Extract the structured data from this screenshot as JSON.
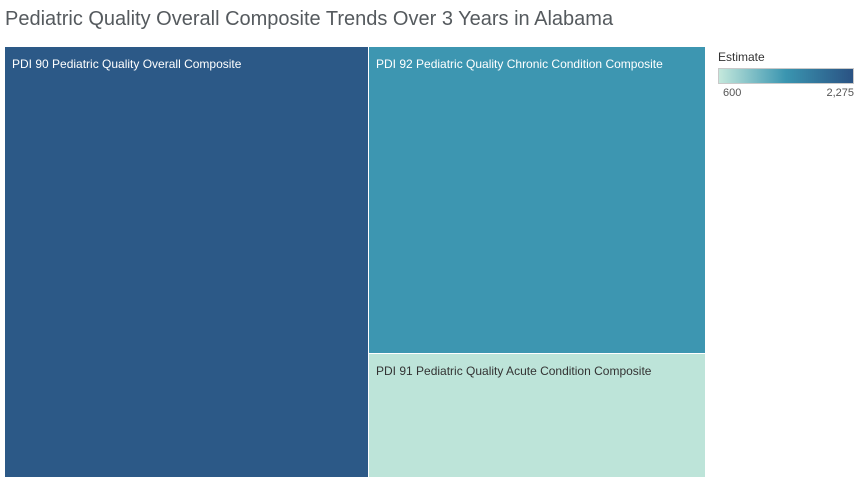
{
  "chart_data": {
    "type": "treemap",
    "title": "Pediatric Quality Overall Composite Trends Over 3 Years in Alabama",
    "measure": "Estimate",
    "items": [
      {
        "label": "PDI 90  Pediatric Quality Overall Composite",
        "value": 2275,
        "color": "#2c5987",
        "text_color": "#ffffff"
      },
      {
        "label": "PDI 92 Pediatric Quality Chronic Condition Composite",
        "value": 1500,
        "color": "#3d96b1",
        "text_color": "#ffffff"
      },
      {
        "label": "PDI 91  Pediatric Quality Acute Condition Composite",
        "value": 600,
        "color": "#bde4d9",
        "text_color": "#333333"
      }
    ],
    "legend": {
      "title": "Estimate",
      "min_label": "600",
      "max_label": "2,275",
      "min": 600,
      "max": 2275,
      "gradient": [
        "#c4e8dc",
        "#3a95b0",
        "#2a5283"
      ],
      "placement": "top-right"
    }
  }
}
